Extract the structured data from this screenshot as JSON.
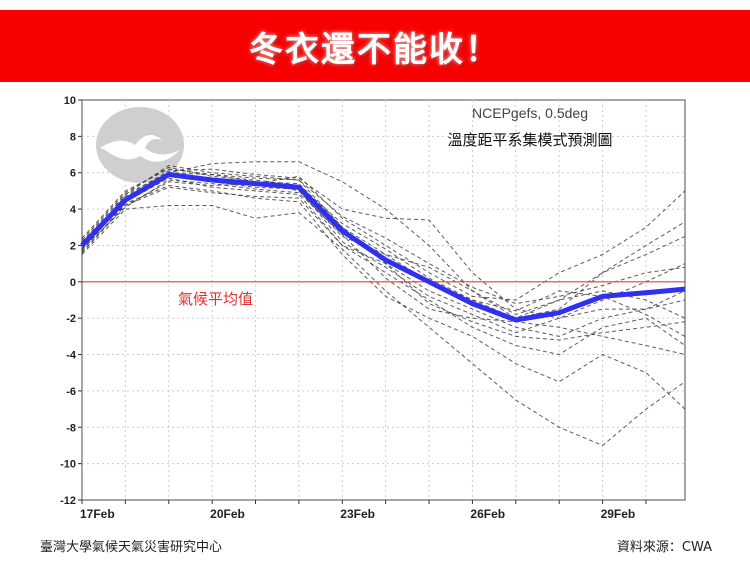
{
  "banner": {
    "title": "冬衣還不能收！",
    "color": "#f70000"
  },
  "chart_data": {
    "type": "line",
    "model_label": "NCEPgefs, 0.5deg",
    "title": "溫度距平系集模式預測圖",
    "zero_line_label": "氣候平均值",
    "zero_line_color": "#e84040",
    "mean_color": "#3030f0",
    "member_color": "#333333",
    "ylim": [
      -12,
      10
    ],
    "yticks": [
      10,
      8,
      6,
      4,
      2,
      0,
      -2,
      -4,
      -6,
      -8,
      -10,
      -12
    ],
    "xticks": [
      {
        "day": 0,
        "label": "17Feb"
      },
      {
        "day": 3,
        "label": "20Feb"
      },
      {
        "day": 6,
        "label": "23Feb"
      },
      {
        "day": 9,
        "label": "26Feb"
      },
      {
        "day": 12,
        "label": "29Feb"
      }
    ],
    "xlim": [
      0,
      13.9
    ],
    "grid": true,
    "x": [
      0,
      1,
      2,
      3,
      4,
      5,
      6,
      7,
      8,
      9,
      10,
      11,
      12,
      13,
      13.9
    ],
    "mean": [
      2.0,
      4.5,
      5.9,
      5.6,
      5.4,
      5.2,
      2.8,
      1.2,
      0.0,
      -1.2,
      -2.1,
      -1.7,
      -0.8,
      -0.6,
      -0.4
    ],
    "members": [
      [
        1.8,
        4.8,
        6.4,
        6.0,
        5.8,
        5.6,
        3.0,
        1.0,
        -0.5,
        -1.5,
        -2.5,
        -3.0,
        -2.0,
        -1.5,
        -1.0
      ],
      [
        2.2,
        4.2,
        5.5,
        5.3,
        5.4,
        5.8,
        3.5,
        2.0,
        0.5,
        -0.8,
        -1.0,
        0.5,
        1.5,
        3.0,
        5.0
      ],
      [
        1.5,
        4.0,
        4.2,
        4.2,
        3.5,
        3.8,
        1.8,
        -0.5,
        -2.5,
        -4.5,
        -6.5,
        -8.0,
        -9.0,
        -7.0,
        -5.5
      ],
      [
        2.0,
        4.6,
        6.0,
        6.5,
        6.6,
        6.6,
        5.5,
        4.0,
        2.0,
        -0.5,
        -2.0,
        -1.0,
        0.5,
        1.5,
        2.5
      ],
      [
        1.9,
        4.4,
        5.7,
        5.2,
        5.0,
        4.8,
        2.0,
        0.5,
        -1.0,
        -2.5,
        -3.5,
        -4.0,
        -2.5,
        -2.0,
        -3.5
      ],
      [
        2.4,
        5.0,
        6.2,
        5.9,
        5.5,
        5.0,
        2.5,
        1.5,
        0.8,
        -0.5,
        -1.8,
        -1.0,
        -0.5,
        -1.0,
        -2.0
      ],
      [
        1.6,
        4.3,
        5.3,
        5.0,
        4.6,
        4.4,
        1.5,
        -0.8,
        -2.0,
        -3.0,
        -4.5,
        -5.5,
        -4.0,
        -5.0,
        -7.0
      ],
      [
        2.1,
        4.7,
        6.1,
        6.2,
        5.9,
        5.7,
        4.0,
        3.5,
        3.4,
        0.5,
        -1.5,
        -2.0,
        -1.5,
        -1.5,
        -0.5
      ],
      [
        1.7,
        4.5,
        5.8,
        5.5,
        5.2,
        5.1,
        2.2,
        0.8,
        -0.8,
        -1.8,
        -2.8,
        -2.0,
        -1.0,
        0.0,
        1.0
      ],
      [
        2.3,
        4.9,
        6.3,
        5.8,
        5.6,
        5.3,
        3.2,
        1.8,
        0.2,
        -1.0,
        -1.6,
        -0.5,
        -0.8,
        -1.8,
        -3.0
      ],
      [
        1.8,
        4.1,
        5.6,
        5.4,
        5.1,
        4.9,
        2.6,
        0.2,
        -1.5,
        -2.0,
        -2.2,
        -2.5,
        -3.0,
        -3.5,
        -4.0
      ],
      [
        2.0,
        4.6,
        5.9,
        5.7,
        5.5,
        5.4,
        3.0,
        1.5,
        0.0,
        -1.0,
        -2.0,
        -1.5,
        0.5,
        2.0,
        3.3
      ],
      [
        1.6,
        4.2,
        5.2,
        4.9,
        4.7,
        4.6,
        2.0,
        1.0,
        -1.2,
        -2.2,
        -3.0,
        -3.2,
        -2.8,
        -2.5,
        -2.2
      ],
      [
        2.2,
        4.8,
        6.0,
        5.9,
        5.7,
        5.6,
        3.6,
        2.4,
        1.0,
        -0.3,
        -1.2,
        -0.8,
        -0.2,
        0.5,
        0.8
      ]
    ]
  },
  "footer": {
    "left": "臺灣大學氣候天氣災害研究中心",
    "right": "資料來源：CWA"
  }
}
